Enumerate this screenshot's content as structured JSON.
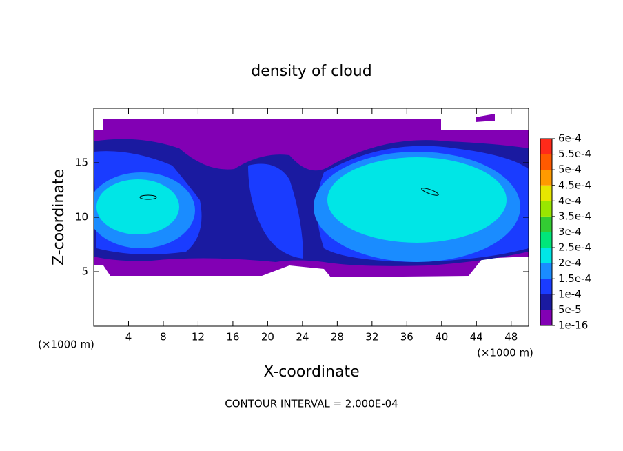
{
  "chart_data": {
    "type": "contour",
    "title": "density of cloud",
    "xlabel": "X-coordinate",
    "ylabel": "Z-coordinate",
    "x_unit": "(×1000 m)",
    "note": "CONTOUR INTERVAL = 2.000E-04",
    "xlim": [
      0,
      50
    ],
    "ylim": [
      0,
      20
    ],
    "xticks": [
      4,
      8,
      12,
      16,
      20,
      24,
      28,
      32,
      36,
      40,
      44,
      48
    ],
    "yticks": [
      5,
      10,
      15
    ],
    "colorbar": {
      "levels": [
        {
          "value": 1e-16,
          "label": "1e-16"
        },
        {
          "value": 5e-05,
          "label": "5e-5"
        },
        {
          "value": 0.0001,
          "label": "1e-4"
        },
        {
          "value": 0.00015,
          "label": "1.5e-4"
        },
        {
          "value": 0.0002,
          "label": "2e-4"
        },
        {
          "value": 0.00025,
          "label": "2.5e-4"
        },
        {
          "value": 0.0003,
          "label": "3e-4"
        },
        {
          "value": 0.00035,
          "label": "3.5e-4"
        },
        {
          "value": 0.0004,
          "label": "4e-4"
        },
        {
          "value": 0.00045,
          "label": "4.5e-4"
        },
        {
          "value": 0.0005,
          "label": "5e-4"
        },
        {
          "value": 0.00055,
          "label": "5.5e-4"
        },
        {
          "value": 0.0006,
          "label": "6e-4"
        }
      ],
      "colors": [
        "#8200b4",
        "#1a1aa0",
        "#1a3cff",
        "#1a8cff",
        "#00e6e6",
        "#00e67a",
        "#33cc33",
        "#99e600",
        "#e6e600",
        "#ff9a00",
        "#ff5a00",
        "#ff2a1a"
      ]
    }
  }
}
